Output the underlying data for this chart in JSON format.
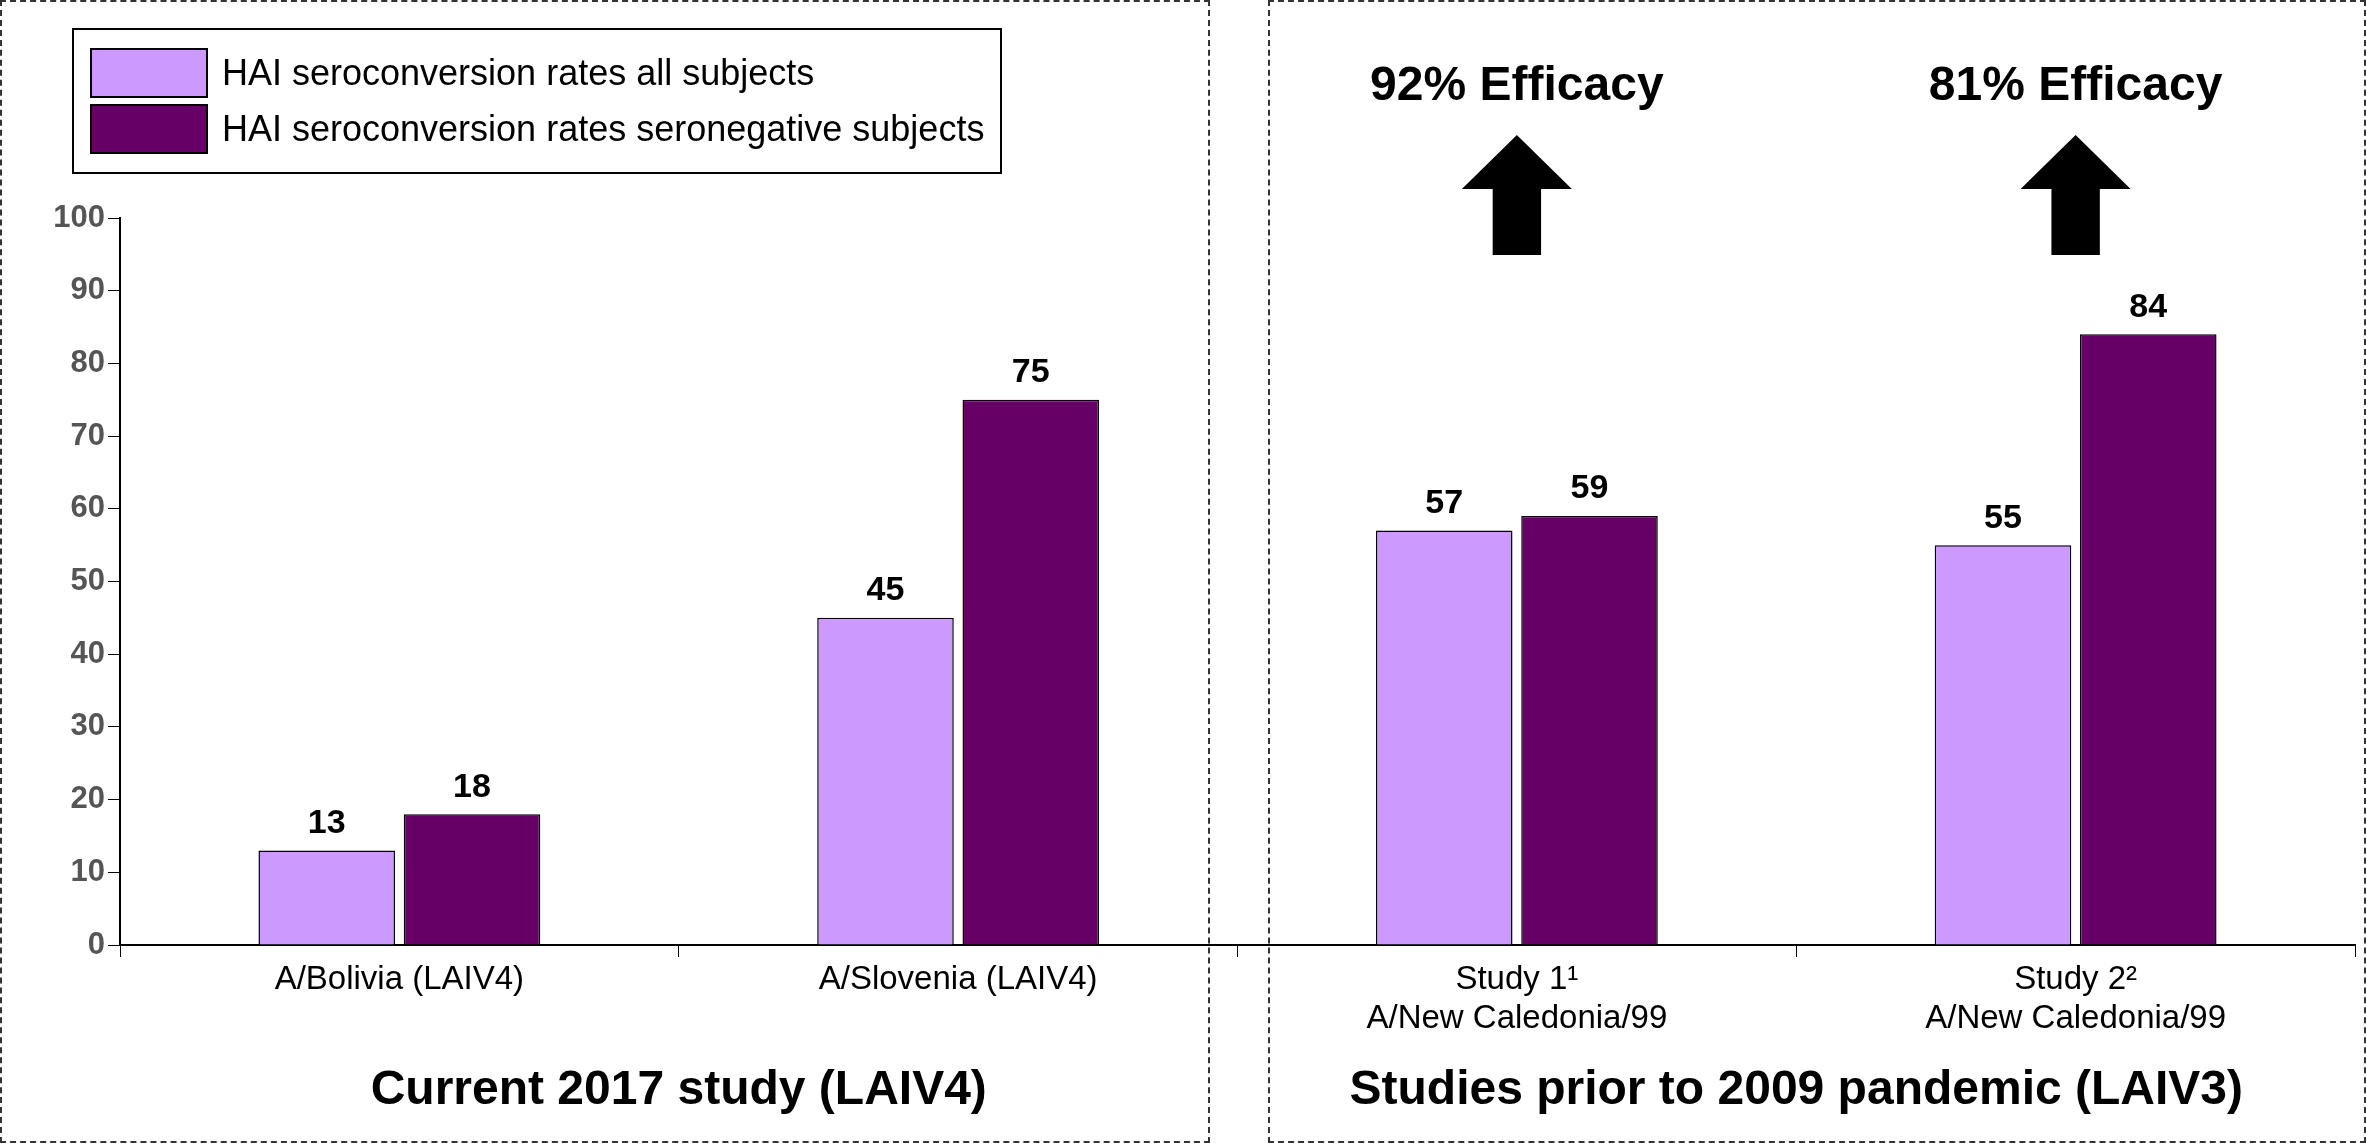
{
  "chart_data": {
    "type": "bar",
    "categories": [
      "A/Bolivia (LAIV4)",
      "A/Slovenia (LAIV4)",
      "Study 1¹\nA/New Caledonia/99",
      "Study 2²\nA/New Caledonia/99"
    ],
    "series": [
      {
        "name": "HAI seroconversion rates all subjects",
        "color": "#cc99ff",
        "values": [
          13,
          45,
          57,
          55
        ]
      },
      {
        "name": "HAI seroconversion rates seronegative subjects",
        "color": "#660066",
        "values": [
          18,
          75,
          59,
          84
        ]
      }
    ],
    "ylim": [
      0,
      100
    ],
    "yticks": [
      0,
      10,
      20,
      30,
      40,
      50,
      60,
      70,
      80,
      90,
      100
    ],
    "grid": false,
    "legend": "top left",
    "data_labels": true,
    "annotations": [
      "Current 2017 study (LAIV4)",
      "Studies prior to 2009 pandemic (LAIV3)",
      "92% Efficacy",
      "81% Efficacy"
    ]
  }
}
